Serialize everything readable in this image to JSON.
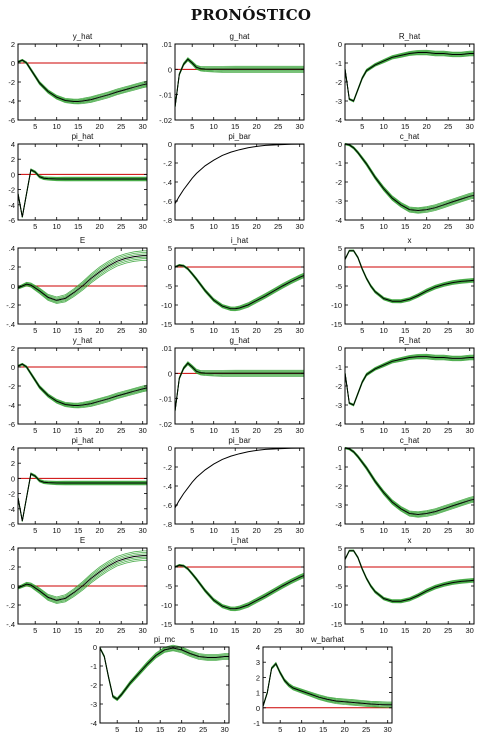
{
  "page": {
    "title": "PRONÓSTICO"
  },
  "colors": {
    "axis": "#000000",
    "zero_line": "#cc0000",
    "band": "#2fa02f",
    "mean": "#000000"
  },
  "chart_data": [
    {
      "type": "line",
      "title": "y_hat",
      "ylim": [
        -6,
        2
      ],
      "yticks": [
        2,
        0,
        -2,
        -4,
        -6
      ],
      "xlim": [
        1,
        31
      ],
      "xticks": [
        5,
        10,
        15,
        20,
        25,
        30
      ],
      "x": [
        1,
        2,
        3,
        4,
        5,
        6,
        8,
        10,
        12,
        14,
        15,
        16,
        18,
        20,
        22,
        24,
        26,
        28,
        30,
        31
      ],
      "values": [
        0.1,
        0.3,
        0,
        -0.7,
        -1.4,
        -2.1,
        -3.0,
        -3.6,
        -3.95,
        -4.05,
        -4.05,
        -4.0,
        -3.85,
        -3.6,
        -3.35,
        -3.05,
        -2.8,
        -2.55,
        -2.3,
        -2.2
      ],
      "band": 0.3
    },
    {
      "type": "line",
      "title": "g_hat",
      "ylim": [
        -0.02,
        0.01
      ],
      "yticks": [
        0.01,
        0,
        -0.01,
        -0.02
      ],
      "xlim": [
        1,
        31
      ],
      "xticks": [
        5,
        10,
        15,
        20,
        25,
        30
      ],
      "x": [
        1,
        2,
        3,
        4,
        5,
        6,
        7,
        8,
        10,
        12,
        15,
        20,
        25,
        30,
        31
      ],
      "values": [
        -0.015,
        -0.002,
        0.002,
        0.004,
        0.0025,
        0.0008,
        0.0002,
        0.0001,
        0,
        0,
        0,
        0,
        0,
        0,
        0
      ],
      "band": 0.0012
    },
    {
      "type": "line",
      "title": "R_hat",
      "ylim": [
        -4,
        0
      ],
      "yticks": [
        0,
        -1,
        -2,
        -3,
        -4
      ],
      "xlim": [
        1,
        31
      ],
      "xticks": [
        5,
        10,
        15,
        20,
        25,
        30
      ],
      "x": [
        1,
        2,
        3,
        4,
        5,
        6,
        8,
        10,
        12,
        14,
        16,
        18,
        20,
        22,
        24,
        26,
        28,
        30,
        31
      ],
      "values": [
        -1.3,
        -2.9,
        -3.0,
        -2.4,
        -1.8,
        -1.4,
        -1.1,
        -0.9,
        -0.7,
        -0.6,
        -0.5,
        -0.45,
        -0.45,
        -0.5,
        -0.5,
        -0.55,
        -0.55,
        -0.5,
        -0.5
      ],
      "band": 0.12
    },
    {
      "type": "line",
      "title": "pi_hat",
      "ylim": [
        -6,
        4
      ],
      "yticks": [
        4,
        2,
        0,
        -2,
        -4,
        -6
      ],
      "xlim": [
        1,
        31
      ],
      "xticks": [
        5,
        10,
        15,
        20,
        25,
        30
      ],
      "x": [
        1,
        2,
        3,
        4,
        5,
        6,
        7,
        8,
        10,
        12,
        15,
        20,
        25,
        30,
        31
      ],
      "values": [
        -2.5,
        -5.6,
        -2.5,
        0.6,
        0.3,
        -0.3,
        -0.5,
        -0.55,
        -0.6,
        -0.6,
        -0.6,
        -0.6,
        -0.6,
        -0.6,
        -0.6
      ],
      "band": 0.25
    },
    {
      "type": "line",
      "title": "pi_bar",
      "ylim": [
        -0.8,
        0
      ],
      "yticks": [
        0,
        -0.2,
        -0.4,
        -0.6,
        -0.8
      ],
      "xlim": [
        1,
        31
      ],
      "xticks": [
        5,
        10,
        15,
        20,
        25,
        30
      ],
      "x": [
        1,
        2,
        3,
        4,
        5,
        6,
        8,
        10,
        12,
        14,
        16,
        18,
        20,
        22,
        25,
        28,
        31
      ],
      "values": [
        -0.63,
        -0.55,
        -0.48,
        -0.42,
        -0.36,
        -0.31,
        -0.23,
        -0.17,
        -0.12,
        -0.085,
        -0.06,
        -0.04,
        -0.025,
        -0.015,
        -0.007,
        -0.003,
        -0.001
      ],
      "band": 0
    },
    {
      "type": "line",
      "title": "c_hat",
      "ylim": [
        -4,
        0
      ],
      "yticks": [
        0,
        -1,
        -2,
        -3,
        -4
      ],
      "xlim": [
        1,
        31
      ],
      "xticks": [
        5,
        10,
        15,
        20,
        25,
        30
      ],
      "x": [
        1,
        2,
        3,
        4,
        5,
        6,
        8,
        10,
        12,
        14,
        16,
        18,
        20,
        22,
        24,
        26,
        28,
        30,
        31
      ],
      "values": [
        0,
        -0.05,
        -0.2,
        -0.45,
        -0.75,
        -1.05,
        -1.75,
        -2.35,
        -2.85,
        -3.2,
        -3.45,
        -3.5,
        -3.45,
        -3.35,
        -3.2,
        -3.05,
        -2.9,
        -2.75,
        -2.7
      ],
      "band": 0.15
    },
    {
      "type": "line",
      "title": "E",
      "ylim": [
        -0.4,
        0.4
      ],
      "yticks": [
        0.4,
        0.2,
        0,
        -0.2,
        -0.4
      ],
      "xlim": [
        1,
        31
      ],
      "xticks": [
        5,
        10,
        15,
        20,
        25,
        30
      ],
      "x": [
        1,
        2,
        3,
        4,
        5,
        6,
        8,
        10,
        12,
        14,
        16,
        18,
        20,
        22,
        24,
        26,
        28,
        30,
        31
      ],
      "values": [
        -0.02,
        0.0,
        0.02,
        0.01,
        -0.02,
        -0.05,
        -0.12,
        -0.15,
        -0.13,
        -0.07,
        0.0,
        0.08,
        0.15,
        0.21,
        0.26,
        0.29,
        0.31,
        0.32,
        0.32
      ],
      "band": 0.05
    },
    {
      "type": "line",
      "title": "i_hat",
      "ylim": [
        -15,
        5
      ],
      "yticks": [
        5,
        0,
        -5,
        -10,
        -15
      ],
      "xlim": [
        1,
        31
      ],
      "xticks": [
        5,
        10,
        15,
        20,
        25,
        30
      ],
      "x": [
        1,
        2,
        3,
        4,
        5,
        6,
        8,
        10,
        12,
        14,
        15,
        16,
        18,
        20,
        22,
        24,
        26,
        28,
        30,
        31
      ],
      "values": [
        0,
        0.5,
        0.3,
        -0.5,
        -1.8,
        -3.2,
        -6.2,
        -8.7,
        -10.3,
        -11.0,
        -11.0,
        -10.8,
        -10.0,
        -8.8,
        -7.6,
        -6.3,
        -5.0,
        -3.8,
        -2.7,
        -2.2
      ],
      "band": 0.6
    },
    {
      "type": "line",
      "title": "x",
      "ylim": [
        -15,
        5
      ],
      "yticks": [
        5,
        0,
        -5,
        -10,
        -15
      ],
      "xlim": [
        1,
        31
      ],
      "xticks": [
        5,
        10,
        15,
        20,
        25,
        30
      ],
      "x": [
        1,
        2,
        3,
        4,
        5,
        6,
        7,
        8,
        10,
        12,
        14,
        16,
        18,
        20,
        22,
        24,
        26,
        28,
        30,
        31
      ],
      "values": [
        2,
        4.3,
        4.3,
        2.5,
        -0.5,
        -3,
        -5,
        -6.5,
        -8.3,
        -9.0,
        -9.0,
        -8.5,
        -7.5,
        -6.3,
        -5.3,
        -4.6,
        -4.1,
        -3.8,
        -3.6,
        -3.5
      ],
      "band": 0.5
    },
    {
      "type": "line",
      "title": "y_hat",
      "ylim": [
        -6,
        2
      ],
      "yticks": [
        2,
        0,
        -2,
        -4,
        -6
      ],
      "xlim": [
        1,
        31
      ],
      "xticks": [
        5,
        10,
        15,
        20,
        25,
        30
      ],
      "x": [
        1,
        2,
        3,
        4,
        5,
        6,
        8,
        10,
        12,
        14,
        15,
        16,
        18,
        20,
        22,
        24,
        26,
        28,
        30,
        31
      ],
      "values": [
        0.1,
        0.3,
        0,
        -0.7,
        -1.4,
        -2.1,
        -3.0,
        -3.6,
        -3.95,
        -4.05,
        -4.05,
        -4.0,
        -3.85,
        -3.6,
        -3.35,
        -3.05,
        -2.8,
        -2.55,
        -2.3,
        -2.2
      ],
      "band": 0.3
    },
    {
      "type": "line",
      "title": "g_hat",
      "ylim": [
        -0.02,
        0.01
      ],
      "yticks": [
        0.01,
        0,
        -0.01,
        -0.02
      ],
      "xlim": [
        1,
        31
      ],
      "xticks": [
        5,
        10,
        15,
        20,
        25,
        30
      ],
      "x": [
        1,
        2,
        3,
        4,
        5,
        6,
        7,
        8,
        10,
        12,
        15,
        20,
        25,
        30,
        31
      ],
      "values": [
        -0.015,
        -0.002,
        0.002,
        0.004,
        0.0025,
        0.0008,
        0.0002,
        0.0001,
        0,
        0,
        0,
        0,
        0,
        0,
        0
      ],
      "band": 0.0012
    },
    {
      "type": "line",
      "title": "R_hat",
      "ylim": [
        -4,
        0
      ],
      "yticks": [
        0,
        -1,
        -2,
        -3,
        -4
      ],
      "xlim": [
        1,
        31
      ],
      "xticks": [
        5,
        10,
        15,
        20,
        25,
        30
      ],
      "x": [
        1,
        2,
        3,
        4,
        5,
        6,
        8,
        10,
        12,
        14,
        16,
        18,
        20,
        22,
        24,
        26,
        28,
        30,
        31
      ],
      "values": [
        -1.3,
        -2.9,
        -3.0,
        -2.4,
        -1.8,
        -1.4,
        -1.1,
        -0.9,
        -0.7,
        -0.6,
        -0.5,
        -0.45,
        -0.45,
        -0.5,
        -0.5,
        -0.55,
        -0.55,
        -0.5,
        -0.5
      ],
      "band": 0.12
    },
    {
      "type": "line",
      "title": "pi_hat",
      "ylim": [
        -6,
        4
      ],
      "yticks": [
        4,
        2,
        0,
        -2,
        -4,
        -6
      ],
      "xlim": [
        1,
        31
      ],
      "xticks": [
        5,
        10,
        15,
        20,
        25,
        30
      ],
      "x": [
        1,
        2,
        3,
        4,
        5,
        6,
        7,
        8,
        10,
        12,
        15,
        20,
        25,
        30,
        31
      ],
      "values": [
        -2.5,
        -5.6,
        -2.5,
        0.6,
        0.3,
        -0.3,
        -0.5,
        -0.55,
        -0.6,
        -0.6,
        -0.6,
        -0.6,
        -0.6,
        -0.6,
        -0.6
      ],
      "band": 0.25
    },
    {
      "type": "line",
      "title": "pi_bar",
      "ylim": [
        -0.8,
        0
      ],
      "yticks": [
        0,
        -0.2,
        -0.4,
        -0.6,
        -0.8
      ],
      "xlim": [
        1,
        31
      ],
      "xticks": [
        5,
        10,
        15,
        20,
        25,
        30
      ],
      "x": [
        1,
        2,
        3,
        4,
        5,
        6,
        8,
        10,
        12,
        14,
        16,
        18,
        20,
        22,
        25,
        28,
        31
      ],
      "values": [
        -0.63,
        -0.55,
        -0.48,
        -0.42,
        -0.36,
        -0.31,
        -0.23,
        -0.17,
        -0.12,
        -0.085,
        -0.06,
        -0.04,
        -0.025,
        -0.015,
        -0.007,
        -0.003,
        -0.001
      ],
      "band": 0
    },
    {
      "type": "line",
      "title": "c_hat",
      "ylim": [
        -4,
        0
      ],
      "yticks": [
        0,
        -1,
        -2,
        -3,
        -4
      ],
      "xlim": [
        1,
        31
      ],
      "xticks": [
        5,
        10,
        15,
        20,
        25,
        30
      ],
      "x": [
        1,
        2,
        3,
        4,
        5,
        6,
        8,
        10,
        12,
        14,
        16,
        18,
        20,
        22,
        24,
        26,
        28,
        30,
        31
      ],
      "values": [
        0,
        -0.05,
        -0.2,
        -0.45,
        -0.75,
        -1.05,
        -1.75,
        -2.35,
        -2.85,
        -3.2,
        -3.45,
        -3.5,
        -3.45,
        -3.35,
        -3.2,
        -3.05,
        -2.9,
        -2.75,
        -2.7
      ],
      "band": 0.15
    },
    {
      "type": "line",
      "title": "E",
      "ylim": [
        -0.4,
        0.4
      ],
      "yticks": [
        0.4,
        0.2,
        0,
        -0.2,
        -0.4
      ],
      "xlim": [
        1,
        31
      ],
      "xticks": [
        5,
        10,
        15,
        20,
        25,
        30
      ],
      "x": [
        1,
        2,
        3,
        4,
        5,
        6,
        8,
        10,
        12,
        14,
        16,
        18,
        20,
        22,
        24,
        26,
        28,
        30,
        31
      ],
      "values": [
        -0.02,
        0.0,
        0.02,
        0.01,
        -0.02,
        -0.05,
        -0.12,
        -0.15,
        -0.13,
        -0.07,
        0.0,
        0.08,
        0.15,
        0.21,
        0.26,
        0.29,
        0.31,
        0.32,
        0.32
      ],
      "band": 0.05
    },
    {
      "type": "line",
      "title": "i_hat",
      "ylim": [
        -15,
        5
      ],
      "yticks": [
        5,
        0,
        -5,
        -10,
        -15
      ],
      "xlim": [
        1,
        31
      ],
      "xticks": [
        5,
        10,
        15,
        20,
        25,
        30
      ],
      "x": [
        1,
        2,
        3,
        4,
        5,
        6,
        8,
        10,
        12,
        14,
        15,
        16,
        18,
        20,
        22,
        24,
        26,
        28,
        30,
        31
      ],
      "values": [
        0,
        0.5,
        0.3,
        -0.5,
        -1.8,
        -3.2,
        -6.2,
        -8.7,
        -10.3,
        -11.0,
        -11.0,
        -10.8,
        -10.0,
        -8.8,
        -7.6,
        -6.3,
        -5.0,
        -3.8,
        -2.7,
        -2.2
      ],
      "band": 0.6
    },
    {
      "type": "line",
      "title": "x",
      "ylim": [
        -15,
        5
      ],
      "yticks": [
        5,
        0,
        -5,
        -10,
        -15
      ],
      "xlim": [
        1,
        31
      ],
      "xticks": [
        5,
        10,
        15,
        20,
        25,
        30
      ],
      "x": [
        1,
        2,
        3,
        4,
        5,
        6,
        7,
        8,
        10,
        12,
        14,
        16,
        18,
        20,
        22,
        24,
        26,
        28,
        30,
        31
      ],
      "values": [
        2,
        4.3,
        4.3,
        2.5,
        -0.5,
        -3,
        -5,
        -6.5,
        -8.3,
        -9.0,
        -9.0,
        -8.5,
        -7.5,
        -6.3,
        -5.3,
        -4.6,
        -4.1,
        -3.8,
        -3.6,
        -3.5
      ],
      "band": 0.5
    },
    {
      "type": "line",
      "title": "pi_mc",
      "ylim": [
        -4,
        0
      ],
      "yticks": [
        0,
        -1,
        -2,
        -3,
        -4
      ],
      "xlim": [
        1,
        31
      ],
      "xticks": [
        5,
        10,
        15,
        20,
        25,
        30
      ],
      "x": [
        1,
        2,
        3,
        4,
        5,
        6,
        7,
        8,
        10,
        12,
        14,
        16,
        18,
        20,
        22,
        24,
        26,
        28,
        30,
        31
      ],
      "values": [
        -0.05,
        -0.5,
        -1.6,
        -2.6,
        -2.75,
        -2.5,
        -2.2,
        -1.9,
        -1.4,
        -0.9,
        -0.45,
        -0.15,
        -0.05,
        -0.15,
        -0.35,
        -0.5,
        -0.55,
        -0.55,
        -0.5,
        -0.5
      ],
      "band": 0.15
    },
    {
      "type": "line",
      "title": "w_barhat",
      "ylim": [
        -1,
        4
      ],
      "yticks": [
        4,
        3,
        2,
        1,
        0,
        -1
      ],
      "xlim": [
        1,
        31
      ],
      "xticks": [
        5,
        10,
        15,
        20,
        25,
        30
      ],
      "x": [
        1,
        2,
        3,
        4,
        5,
        6,
        7,
        8,
        10,
        12,
        14,
        16,
        18,
        20,
        22,
        24,
        26,
        28,
        30,
        31
      ],
      "values": [
        0.1,
        1.0,
        2.6,
        2.9,
        2.3,
        1.8,
        1.5,
        1.3,
        1.1,
        0.9,
        0.7,
        0.55,
        0.45,
        0.4,
        0.35,
        0.3,
        0.25,
        0.22,
        0.2,
        0.2
      ],
      "band": 0.18
    }
  ]
}
